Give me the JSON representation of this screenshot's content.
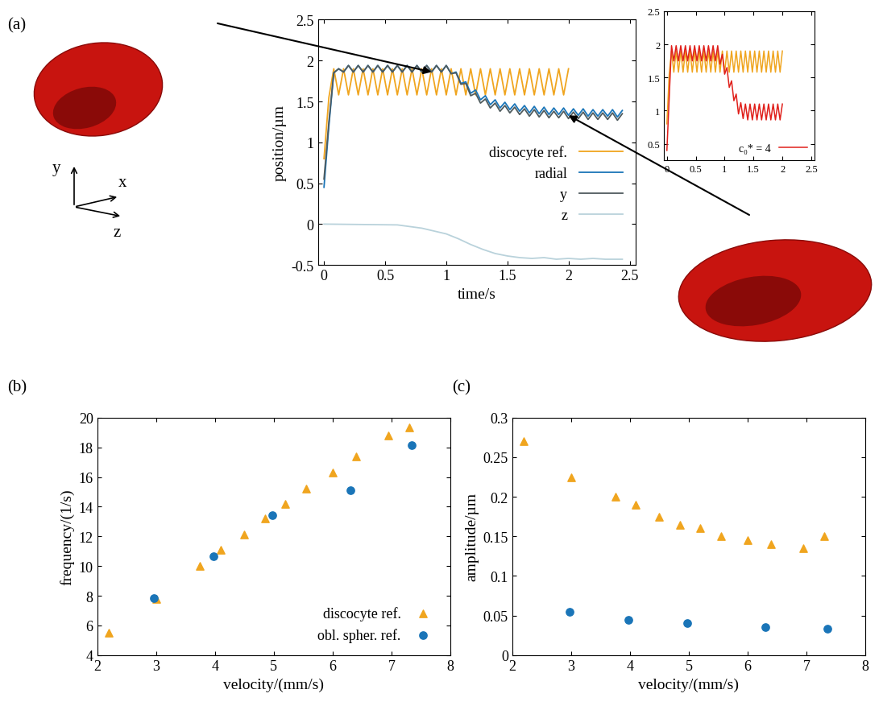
{
  "chart_data": [
    {
      "type": "line",
      "panel_label": "(a)",
      "x_label": "time/s",
      "y_label": "position/µm",
      "coordinate_labels": [
        "x",
        "y",
        "z"
      ],
      "xlim": [
        -0.05,
        2.55
      ],
      "xticks": [
        0,
        0.5,
        1,
        1.5,
        2,
        2.5
      ],
      "ylim": [
        -0.5,
        2.5
      ],
      "yticks": [
        -0.5,
        0,
        0.5,
        1,
        1.5,
        2,
        2.5
      ],
      "legend": "lower right",
      "series": [
        {
          "name": "discocyte ref.",
          "color": "#f0a51f",
          "x": [
            0,
            0.04,
            0.08,
            0.12,
            0.16,
            0.2,
            0.24,
            0.28,
            0.32,
            0.36,
            0.4,
            0.44,
            0.48,
            0.52,
            0.56,
            0.6,
            0.64,
            0.68,
            0.72,
            0.76,
            0.8,
            0.84,
            0.88,
            0.92,
            0.96,
            1.0,
            1.04,
            1.08,
            1.12,
            1.16,
            1.2,
            1.24,
            1.28,
            1.32,
            1.36,
            1.4,
            1.44,
            1.48,
            1.52,
            1.56,
            1.6,
            1.64,
            1.68,
            1.72,
            1.76,
            1.8,
            1.84,
            1.88,
            1.92,
            1.96,
            2.0
          ],
          "values": [
            0.8,
            1.55,
            1.9,
            1.58,
            1.9,
            1.58,
            1.9,
            1.58,
            1.9,
            1.58,
            1.9,
            1.58,
            1.9,
            1.58,
            1.9,
            1.58,
            1.9,
            1.58,
            1.9,
            1.58,
            1.9,
            1.58,
            1.9,
            1.58,
            1.9,
            1.58,
            1.9,
            1.58,
            1.9,
            1.58,
            1.9,
            1.58,
            1.9,
            1.58,
            1.9,
            1.58,
            1.9,
            1.58,
            1.9,
            1.58,
            1.9,
            1.58,
            1.9,
            1.58,
            1.9,
            1.58,
            1.9,
            1.58,
            1.9,
            1.58,
            1.9
          ]
        },
        {
          "name": "radial",
          "color": "#1a75b8",
          "x": [
            0,
            0.04,
            0.08,
            0.12,
            0.16,
            0.2,
            0.24,
            0.28,
            0.32,
            0.36,
            0.4,
            0.44,
            0.48,
            0.52,
            0.56,
            0.6,
            0.64,
            0.68,
            0.72,
            0.76,
            0.8,
            0.84,
            0.88,
            0.92,
            0.96,
            1.0,
            1.04,
            1.08,
            1.12,
            1.16,
            1.2,
            1.24,
            1.28,
            1.32,
            1.36,
            1.4,
            1.44,
            1.48,
            1.52,
            1.56,
            1.6,
            1.64,
            1.68,
            1.72,
            1.76,
            1.8,
            1.84,
            1.88,
            1.92,
            1.96,
            2.0,
            2.04,
            2.08,
            2.12,
            2.16,
            2.2,
            2.24,
            2.28,
            2.32,
            2.36,
            2.4,
            2.44
          ],
          "values": [
            0.45,
            1.2,
            1.85,
            1.9,
            1.86,
            1.94,
            1.86,
            1.94,
            1.86,
            1.94,
            1.86,
            1.94,
            1.86,
            1.94,
            1.86,
            1.94,
            1.86,
            1.94,
            1.86,
            1.94,
            1.86,
            1.94,
            1.86,
            1.94,
            1.86,
            1.94,
            1.84,
            1.86,
            1.72,
            1.74,
            1.6,
            1.64,
            1.52,
            1.57,
            1.46,
            1.52,
            1.42,
            1.49,
            1.4,
            1.47,
            1.38,
            1.45,
            1.36,
            1.44,
            1.35,
            1.43,
            1.34,
            1.42,
            1.34,
            1.42,
            1.33,
            1.41,
            1.33,
            1.41,
            1.32,
            1.4,
            1.32,
            1.4,
            1.32,
            1.4,
            1.31,
            1.39
          ]
        },
        {
          "name": "y",
          "color": "#4f5b5e",
          "x": [
            0,
            0.04,
            0.08,
            0.12,
            0.16,
            0.2,
            0.24,
            0.28,
            0.32,
            0.36,
            0.4,
            0.44,
            0.48,
            0.52,
            0.56,
            0.6,
            0.64,
            0.68,
            0.72,
            0.76,
            0.8,
            0.84,
            0.88,
            0.92,
            0.96,
            1.0,
            1.04,
            1.08,
            1.12,
            1.16,
            1.2,
            1.24,
            1.28,
            1.32,
            1.36,
            1.4,
            1.44,
            1.48,
            1.52,
            1.56,
            1.6,
            1.64,
            1.68,
            1.72,
            1.76,
            1.8,
            1.84,
            1.88,
            1.92,
            1.96,
            2.0,
            2.04,
            2.08,
            2.12,
            2.16,
            2.2,
            2.24,
            2.28,
            2.32,
            2.36,
            2.4,
            2.44
          ],
          "values": [
            0.55,
            1.25,
            1.85,
            1.9,
            1.86,
            1.94,
            1.86,
            1.94,
            1.86,
            1.94,
            1.86,
            1.94,
            1.86,
            1.94,
            1.86,
            1.94,
            1.86,
            1.94,
            1.86,
            1.94,
            1.86,
            1.94,
            1.86,
            1.94,
            1.86,
            1.94,
            1.84,
            1.85,
            1.71,
            1.72,
            1.57,
            1.6,
            1.48,
            1.53,
            1.42,
            1.48,
            1.38,
            1.45,
            1.36,
            1.43,
            1.34,
            1.41,
            1.32,
            1.4,
            1.31,
            1.39,
            1.3,
            1.38,
            1.3,
            1.38,
            1.29,
            1.37,
            1.29,
            1.37,
            1.28,
            1.36,
            1.28,
            1.36,
            1.28,
            1.36,
            1.27,
            1.35
          ]
        },
        {
          "name": "z",
          "color": "#b9d2db",
          "x": [
            0,
            0.6,
            0.8,
            1.0,
            1.1,
            1.2,
            1.3,
            1.4,
            1.5,
            1.6,
            1.7,
            1.8,
            1.9,
            2.0,
            2.1,
            2.2,
            2.3,
            2.44
          ],
          "values": [
            0,
            -0.01,
            -0.05,
            -0.12,
            -0.18,
            -0.25,
            -0.31,
            -0.36,
            -0.39,
            -0.41,
            -0.42,
            -0.41,
            -0.43,
            -0.42,
            -0.43,
            -0.42,
            -0.43,
            -0.43
          ]
        }
      ]
    },
    {
      "type": "line",
      "xlim": [
        -0.05,
        2.55
      ],
      "xticks": [
        0,
        0.5,
        1,
        1.5,
        2,
        2.5
      ],
      "ylim": [
        0.25,
        2.5
      ],
      "yticks": [
        0.5,
        1,
        1.5,
        2,
        2.5
      ],
      "legend": "lower right",
      "series": [
        {
          "color": "#f0a51f",
          "x": [
            0,
            0.04,
            0.08,
            0.12,
            0.16,
            0.2,
            0.24,
            0.28,
            0.32,
            0.36,
            0.4,
            0.44,
            0.48,
            0.52,
            0.56,
            0.6,
            0.64,
            0.68,
            0.72,
            0.76,
            0.8,
            0.84,
            0.88,
            0.92,
            0.96,
            1.0,
            1.04,
            1.08,
            1.12,
            1.16,
            1.2,
            1.24,
            1.28,
            1.32,
            1.36,
            1.4,
            1.44,
            1.48,
            1.52,
            1.56,
            1.6,
            1.64,
            1.68,
            1.72,
            1.76,
            1.8,
            1.84,
            1.88,
            1.92,
            1.96,
            2.0
          ],
          "values": [
            0.8,
            1.55,
            1.9,
            1.58,
            1.9,
            1.58,
            1.9,
            1.58,
            1.9,
            1.58,
            1.9,
            1.58,
            1.9,
            1.58,
            1.9,
            1.58,
            1.9,
            1.58,
            1.9,
            1.58,
            1.9,
            1.58,
            1.9,
            1.58,
            1.9,
            1.58,
            1.9,
            1.58,
            1.9,
            1.58,
            1.9,
            1.58,
            1.9,
            1.58,
            1.9,
            1.58,
            1.9,
            1.58,
            1.9,
            1.58,
            1.9,
            1.58,
            1.9,
            1.58,
            1.9,
            1.58,
            1.9,
            1.58,
            1.9,
            1.58,
            1.9
          ]
        },
        {
          "name": "c₀* = 4",
          "color": "#e0201b",
          "x": [
            0,
            0.04,
            0.08,
            0.12,
            0.16,
            0.2,
            0.24,
            0.28,
            0.32,
            0.36,
            0.4,
            0.44,
            0.48,
            0.52,
            0.56,
            0.6,
            0.64,
            0.68,
            0.72,
            0.76,
            0.8,
            0.84,
            0.88,
            0.92,
            0.96,
            1.0,
            1.04,
            1.08,
            1.12,
            1.16,
            1.2,
            1.24,
            1.28,
            1.32,
            1.36,
            1.4,
            1.44,
            1.48,
            1.52,
            1.56,
            1.6,
            1.64,
            1.68,
            1.72,
            1.76,
            1.8,
            1.84,
            1.88,
            1.92,
            1.96,
            2.0
          ],
          "values": [
            0.4,
            1.2,
            1.98,
            1.75,
            1.98,
            1.75,
            1.98,
            1.75,
            1.98,
            1.75,
            1.98,
            1.75,
            1.98,
            1.75,
            1.98,
            1.75,
            1.98,
            1.75,
            1.98,
            1.75,
            1.98,
            1.75,
            1.98,
            1.7,
            1.85,
            1.55,
            1.65,
            1.35,
            1.45,
            1.15,
            1.25,
            0.95,
            1.12,
            0.88,
            1.1,
            0.86,
            1.1,
            0.86,
            1.1,
            0.86,
            1.1,
            0.86,
            1.1,
            0.86,
            1.1,
            0.86,
            1.1,
            0.86,
            1.1,
            0.86,
            1.1
          ]
        }
      ]
    },
    {
      "type": "scatter",
      "panel_label": "(b)",
      "x_label": "velocity/(mm/s)",
      "y_label": "frequency/(1/s)",
      "xlim": [
        2,
        8
      ],
      "xticks": [
        2,
        3,
        4,
        5,
        6,
        7,
        8
      ],
      "ylim": [
        4,
        20
      ],
      "yticks": [
        4,
        6,
        8,
        10,
        12,
        14,
        16,
        18,
        20
      ],
      "legend": "lower right",
      "series": [
        {
          "name": "discocyte ref.",
          "color": "#f0a51f",
          "marker": "triangle",
          "x": [
            2.2,
            3.0,
            3.75,
            4.1,
            4.5,
            4.85,
            5.2,
            5.55,
            6.0,
            6.4,
            6.95,
            7.3
          ],
          "values": [
            5.5,
            7.8,
            10.0,
            11.1,
            12.1,
            13.2,
            14.2,
            15.2,
            16.3,
            17.4,
            18.8,
            19.35
          ]
        },
        {
          "name": "obl. spher. ref.",
          "color": "#1a75b8",
          "marker": "circle",
          "x": [
            2.97,
            3.97,
            4.97,
            6.3,
            7.35
          ],
          "values": [
            7.85,
            10.65,
            13.4,
            15.1,
            18.15
          ]
        }
      ]
    },
    {
      "type": "scatter",
      "panel_label": "(c)",
      "x_label": "velocity/(mm/s)",
      "y_label": "amplitude/µm",
      "xlim": [
        2,
        8
      ],
      "xticks": [
        2,
        3,
        4,
        5,
        6,
        7,
        8
      ],
      "ylim": [
        0,
        0.3
      ],
      "yticks": [
        0,
        0.05,
        0.1,
        0.15,
        0.2,
        0.25,
        0.3
      ],
      "series": [
        {
          "color": "#f0a51f",
          "marker": "triangle",
          "x": [
            2.2,
            3.0,
            3.75,
            4.1,
            4.5,
            4.85,
            5.2,
            5.55,
            6.0,
            6.4,
            6.95,
            7.3
          ],
          "values": [
            0.27,
            0.225,
            0.2,
            0.19,
            0.175,
            0.165,
            0.16,
            0.15,
            0.145,
            0.14,
            0.135,
            0.15
          ]
        },
        {
          "color": "#1a75b8",
          "marker": "circle",
          "x": [
            2.97,
            3.97,
            4.97,
            6.3,
            7.35
          ],
          "values": [
            0.055,
            0.045,
            0.04,
            0.035,
            0.033
          ]
        }
      ]
    }
  ]
}
